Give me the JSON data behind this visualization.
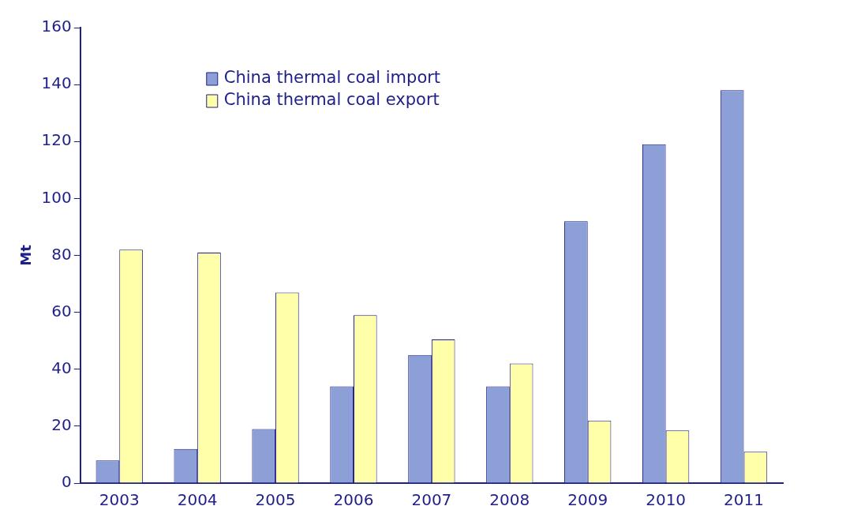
{
  "chart_data": {
    "type": "bar",
    "ylabel": "Mt",
    "categories": [
      "2003",
      "2004",
      "2005",
      "2006",
      "2007",
      "2008",
      "2009",
      "2010",
      "2011"
    ],
    "series": [
      {
        "name": "China thermal coal import",
        "color": "#8c9fd6",
        "values": [
          8,
          12,
          19,
          34,
          45,
          34,
          92,
          119,
          138
        ]
      },
      {
        "name": "China thermal coal export",
        "color": "#ffffaa",
        "values": [
          82,
          81,
          67,
          59,
          50.5,
          42,
          22,
          18.5,
          11
        ]
      }
    ],
    "ylim": [
      0,
      160
    ],
    "yticks": [
      0,
      20,
      40,
      60,
      80,
      100,
      120,
      140,
      160
    ],
    "grid": false,
    "legend": "top"
  }
}
